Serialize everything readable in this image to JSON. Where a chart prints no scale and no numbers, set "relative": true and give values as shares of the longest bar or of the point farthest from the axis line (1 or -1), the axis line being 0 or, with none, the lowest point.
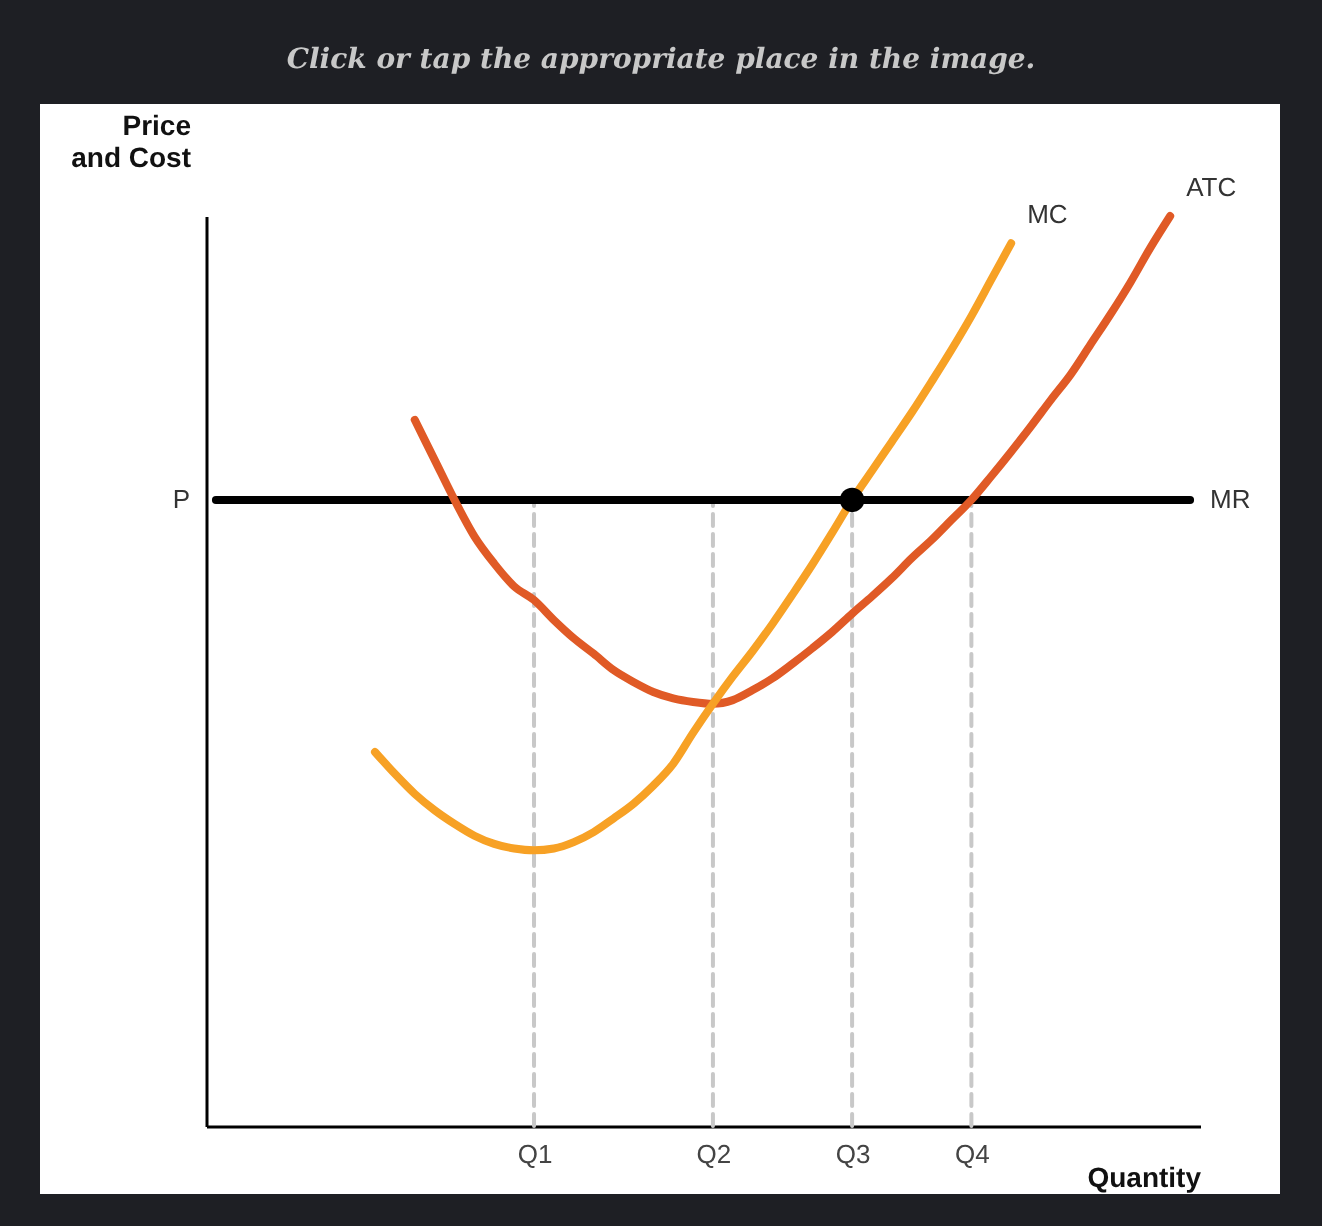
{
  "chart_data": {
    "type": "line",
    "title": "Click or tap the appropriate place in the image.",
    "xlabel": "Quantity",
    "ylabel": "Price\nand Cost",
    "relative": true,
    "categories": [
      null,
      null,
      null,
      null,
      null,
      null,
      null,
      null,
      null,
      null,
      null,
      null,
      null,
      null,
      null,
      null,
      "Q1",
      null,
      null,
      null,
      null,
      null,
      null,
      null,
      null,
      "Q2",
      null,
      null,
      null,
      null,
      null,
      null,
      "Q3",
      null,
      null,
      null,
      null,
      null,
      "Q4",
      null,
      null,
      null,
      null,
      null,
      null,
      null,
      null,
      null,
      null,
      null
    ],
    "annotations": [
      "P"
    ],
    "series": [
      {
        "color": "#c8c8c8",
        "line_style": "dashed",
        "x": [
          "Q1",
          "Q1"
        ],
        "values": [
          0,
          0.688
        ]
      },
      {
        "color": "#c8c8c8",
        "line_style": "dashed",
        "x": [
          "Q2",
          "Q2"
        ],
        "values": [
          0,
          0.688
        ]
      },
      {
        "color": "#c8c8c8",
        "line_style": "dashed",
        "x": [
          "Q3",
          "Q3"
        ],
        "values": [
          0,
          0.688
        ]
      },
      {
        "color": "#c8c8c8",
        "line_style": "dashed",
        "x": [
          "Q4",
          "Q4"
        ],
        "values": [
          0,
          0.688
        ]
      },
      {
        "name": "MR",
        "color": "#000000",
        "line_style": "solid",
        "values": [
          0.688,
          0.688,
          0.688,
          0.688,
          0.688,
          0.688,
          0.688,
          0.688,
          0.688,
          0.688,
          0.688,
          0.688,
          0.688,
          0.688,
          0.688,
          0.688,
          0.688,
          0.688,
          0.688,
          0.688,
          0.688,
          0.688,
          0.688,
          0.688,
          0.688,
          0.688,
          0.688,
          0.688,
          0.688,
          0.688,
          0.688,
          0.688,
          0.688,
          0.688,
          0.688,
          0.688,
          0.688,
          0.688,
          0.688,
          0.688,
          0.688,
          0.688,
          0.688,
          0.688,
          0.688,
          0.688,
          0.688,
          0.688,
          0.688,
          0.688
        ]
      },
      {
        "name": "ATC",
        "color": "#e05a26",
        "line_style": "solid",
        "values": [
          null,
          null,
          null,
          null,
          null,
          null,
          null,
          null,
          null,
          null,
          0.776,
          0.732,
          0.688,
          0.648,
          0.618,
          0.593,
          0.578,
          0.556,
          0.536,
          0.519,
          0.501,
          0.488,
          0.477,
          0.47,
          0.466,
          0.464,
          0.468,
          0.479,
          0.492,
          0.508,
          0.525,
          0.543,
          0.563,
          0.582,
          0.602,
          0.624,
          0.644,
          0.666,
          0.688,
          0.714,
          0.741,
          0.769,
          0.798,
          0.826,
          0.859,
          0.892,
          0.927,
          0.965,
          1,
          null
        ]
      },
      {
        "name": "MC",
        "color": "#f7a125",
        "line_style": "solid",
        "values": [
          null,
          null,
          null,
          null,
          null,
          null,
          null,
          null,
          0.411,
          0.387,
          0.365,
          0.347,
          0.332,
          0.319,
          0.31,
          0.305,
          0.303,
          0.305,
          0.312,
          0.323,
          0.338,
          0.354,
          0.374,
          0.398,
          0.432,
          0.464,
          0.494,
          0.522,
          0.552,
          0.584,
          0.617,
          0.652,
          0.688,
          0.72,
          0.752,
          0.784,
          0.818,
          0.853,
          0.89,
          0.93,
          0.97,
          null,
          null,
          null,
          null,
          null,
          null,
          null,
          null,
          null
        ]
      },
      {
        "type": "scatter",
        "color": "#000000",
        "marker": "circle",
        "x": [
          "Q3"
        ],
        "values": [
          0.688
        ]
      }
    ]
  }
}
